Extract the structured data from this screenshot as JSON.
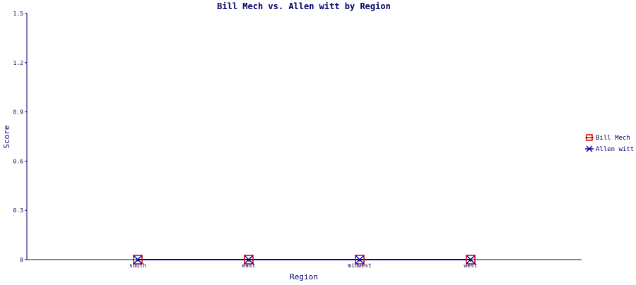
{
  "chart_data": {
    "type": "line",
    "title": "Bill Mech vs. Allen witt by Region",
    "xlabel": "Region",
    "ylabel": "Score",
    "categories": [
      "south",
      "east",
      "midwest",
      "west"
    ],
    "ylim": [
      0,
      1.5
    ],
    "yticks": [
      "0",
      "0.3",
      "0.6",
      "0.9",
      "1.2",
      "1.5"
    ],
    "ytick_values": [
      0,
      0.3,
      0.6,
      0.9,
      1.2,
      1.5
    ],
    "grid": false,
    "legend_position": "right",
    "series": [
      {
        "name": "Bill Mech",
        "values": [
          0,
          0,
          0,
          0
        ],
        "color": "#cc0000",
        "marker": "square"
      },
      {
        "name": "Allen witt",
        "values": [
          0,
          0,
          0,
          0
        ],
        "color": "#000099",
        "marker": "x"
      }
    ],
    "axis_color": "#000066"
  }
}
